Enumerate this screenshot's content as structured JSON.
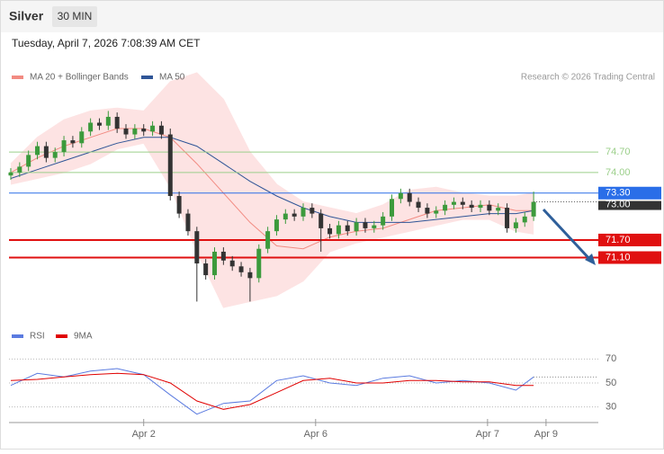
{
  "chart_data": {
    "type": "candlestick",
    "title": "Silver",
    "timeframe": "30 MIN",
    "subtitle": "Tuesday, April 7, 2026 7:08:39 AM CET",
    "credit": "Research © 2026 Trading Central",
    "up_color": "#3c9a3c",
    "down_color": "#333333",
    "xlim": [
      -0.2,
      66.3
    ],
    "ylim": [
      69,
      77.8
    ],
    "xticks": [
      {
        "value": 15,
        "label": "Apr 2"
      },
      {
        "value": 34.4,
        "label": "Apr 6"
      },
      {
        "value": 53.8,
        "label": "Apr 7"
      },
      {
        "value": 60.4,
        "label": "Apr 9"
      }
    ],
    "candles": [
      [
        73.9,
        74.15,
        73.75,
        74.0
      ],
      [
        74.0,
        74.35,
        73.85,
        74.2
      ],
      [
        74.2,
        74.75,
        74.05,
        74.6
      ],
      [
        74.6,
        75.05,
        74.45,
        74.9
      ],
      [
        74.9,
        75.05,
        74.35,
        74.5
      ],
      [
        74.5,
        74.85,
        74.35,
        74.7
      ],
      [
        74.7,
        75.25,
        74.55,
        75.1
      ],
      [
        75.1,
        75.25,
        74.85,
        75.0
      ],
      [
        75.0,
        75.55,
        74.85,
        75.4
      ],
      [
        75.4,
        75.85,
        75.25,
        75.7
      ],
      [
        75.7,
        75.85,
        75.45,
        75.6
      ],
      [
        75.6,
        76.1,
        75.45,
        75.9
      ],
      [
        75.9,
        76.05,
        75.35,
        75.5
      ],
      [
        75.5,
        75.65,
        75.15,
        75.3
      ],
      [
        75.3,
        75.65,
        75.15,
        75.5
      ],
      [
        75.5,
        75.65,
        75.25,
        75.4
      ],
      [
        75.4,
        75.75,
        75.25,
        75.6
      ],
      [
        75.6,
        75.75,
        75.15,
        75.3
      ],
      [
        75.3,
        75.5,
        73.05,
        73.2
      ],
      [
        73.2,
        73.35,
        72.45,
        72.6
      ],
      [
        72.6,
        72.75,
        71.85,
        72.0
      ],
      [
        72.0,
        72.15,
        69.6,
        70.9
      ],
      [
        70.9,
        71.05,
        70.35,
        70.5
      ],
      [
        70.5,
        71.45,
        70.35,
        71.3
      ],
      [
        71.3,
        71.45,
        70.85,
        71.0
      ],
      [
        71.0,
        71.15,
        70.65,
        70.8
      ],
      [
        70.8,
        70.95,
        70.45,
        70.6
      ],
      [
        70.6,
        70.75,
        69.6,
        70.4
      ],
      [
        70.4,
        71.55,
        70.25,
        71.4
      ],
      [
        71.4,
        72.15,
        71.25,
        72.0
      ],
      [
        72.0,
        72.55,
        71.85,
        72.4
      ],
      [
        72.4,
        72.75,
        72.25,
        72.6
      ],
      [
        72.6,
        72.75,
        72.35,
        72.5
      ],
      [
        72.5,
        72.95,
        72.35,
        72.8
      ],
      [
        72.8,
        72.95,
        72.45,
        72.6
      ],
      [
        72.6,
        72.75,
        71.3,
        72.1
      ],
      [
        72.1,
        72.25,
        71.75,
        71.9
      ],
      [
        71.9,
        72.35,
        71.75,
        72.2
      ],
      [
        72.2,
        72.35,
        71.85,
        72.0
      ],
      [
        72.0,
        72.45,
        71.85,
        72.3
      ],
      [
        72.3,
        72.45,
        71.95,
        72.1
      ],
      [
        72.1,
        72.35,
        71.95,
        72.2
      ],
      [
        72.2,
        72.65,
        72.05,
        72.5
      ],
      [
        72.5,
        73.25,
        72.35,
        73.1
      ],
      [
        73.1,
        73.45,
        72.95,
        73.3
      ],
      [
        73.3,
        73.45,
        72.85,
        73.0
      ],
      [
        73.0,
        73.15,
        72.65,
        72.8
      ],
      [
        72.8,
        72.95,
        72.45,
        72.6
      ],
      [
        72.6,
        72.85,
        72.45,
        72.7
      ],
      [
        72.7,
        73.05,
        72.55,
        72.9
      ],
      [
        72.9,
        73.15,
        72.75,
        73.0
      ],
      [
        73.0,
        73.15,
        72.75,
        72.9
      ],
      [
        72.9,
        73.05,
        72.65,
        72.8
      ],
      [
        72.8,
        73.05,
        72.65,
        72.9
      ],
      [
        72.9,
        73.05,
        72.55,
        72.7
      ],
      [
        72.7,
        72.95,
        72.55,
        72.8
      ],
      [
        72.8,
        72.95,
        71.95,
        72.1
      ],
      [
        72.1,
        72.45,
        71.95,
        72.3
      ],
      [
        72.3,
        72.65,
        72.15,
        72.5
      ],
      [
        72.5,
        73.35,
        72.35,
        73.0
      ]
    ],
    "overlay_x": [
      0,
      3,
      6,
      9,
      12,
      15,
      18,
      21,
      24,
      27,
      30,
      33,
      36,
      39,
      42,
      45,
      48,
      51,
      54,
      57,
      59
    ],
    "series": [
      {
        "name": "MA 20 + Bollinger Bands",
        "color": "#f28b82",
        "band_color": "#fde3e3",
        "values": [
          74.0,
          74.5,
          74.9,
          75.2,
          75.5,
          75.5,
          75.2,
          74.3,
          73.3,
          72.3,
          71.5,
          71.4,
          71.8,
          72.0,
          72.1,
          72.4,
          72.7,
          72.8,
          72.9,
          72.7,
          72.7
        ],
        "upper": [
          74.3,
          75.2,
          75.8,
          76.1,
          76.2,
          76.1,
          77.1,
          77.4,
          76.5,
          74.7,
          73.6,
          73.0,
          72.8,
          72.6,
          72.9,
          73.4,
          73.5,
          73.3,
          73.2,
          73.2,
          73.3
        ],
        "lower": [
          73.6,
          73.8,
          74.0,
          74.3,
          74.8,
          75.0,
          73.5,
          71.3,
          69.4,
          69.6,
          69.8,
          70.3,
          71.3,
          71.6,
          71.8,
          72.0,
          72.2,
          72.4,
          72.4,
          72.0,
          71.9
        ]
      },
      {
        "name": "MA 50",
        "color": "#2f5597",
        "values": [
          73.8,
          74.1,
          74.4,
          74.7,
          75.0,
          75.2,
          75.2,
          74.9,
          74.3,
          73.7,
          73.2,
          72.8,
          72.5,
          72.3,
          72.3,
          72.3,
          72.4,
          72.5,
          72.6,
          72.6,
          72.7
        ]
      }
    ],
    "levels": [
      {
        "value": 74.7,
        "label": "74.70",
        "color": "#9bcf8a",
        "label_style": "text"
      },
      {
        "value": 74,
        "label": "74.00",
        "color": "#9bcf8a",
        "label_style": "text"
      },
      {
        "value": 73.3,
        "label": "73.30",
        "color": "#2a6ee8",
        "label_style": "box"
      },
      {
        "value": 71.7,
        "label": "71.70",
        "color": "#e01010",
        "label_style": "box"
      },
      {
        "value": 71.1,
        "label": "71.10",
        "color": "#e01010",
        "label_style": "box"
      }
    ],
    "last_price": {
      "value": 73,
      "label": "73.00",
      "color": "#333333"
    },
    "rsi": {
      "ylim": [
        20,
        80
      ],
      "yticks": [
        30,
        50,
        70
      ],
      "series": [
        {
          "name": "RSI",
          "color": "#5b7be0",
          "values": [
            48,
            58,
            55,
            60,
            62,
            57,
            40,
            24,
            33,
            35,
            52,
            56,
            50,
            48,
            54,
            56,
            50,
            52,
            50,
            44,
            55
          ]
        },
        {
          "name": "9MA",
          "color": "#e00000",
          "values": [
            52,
            53,
            55,
            57,
            58,
            57,
            50,
            35,
            28,
            32,
            42,
            52,
            54,
            50,
            50,
            52,
            52,
            51,
            51,
            48,
            48
          ]
        }
      ]
    }
  }
}
